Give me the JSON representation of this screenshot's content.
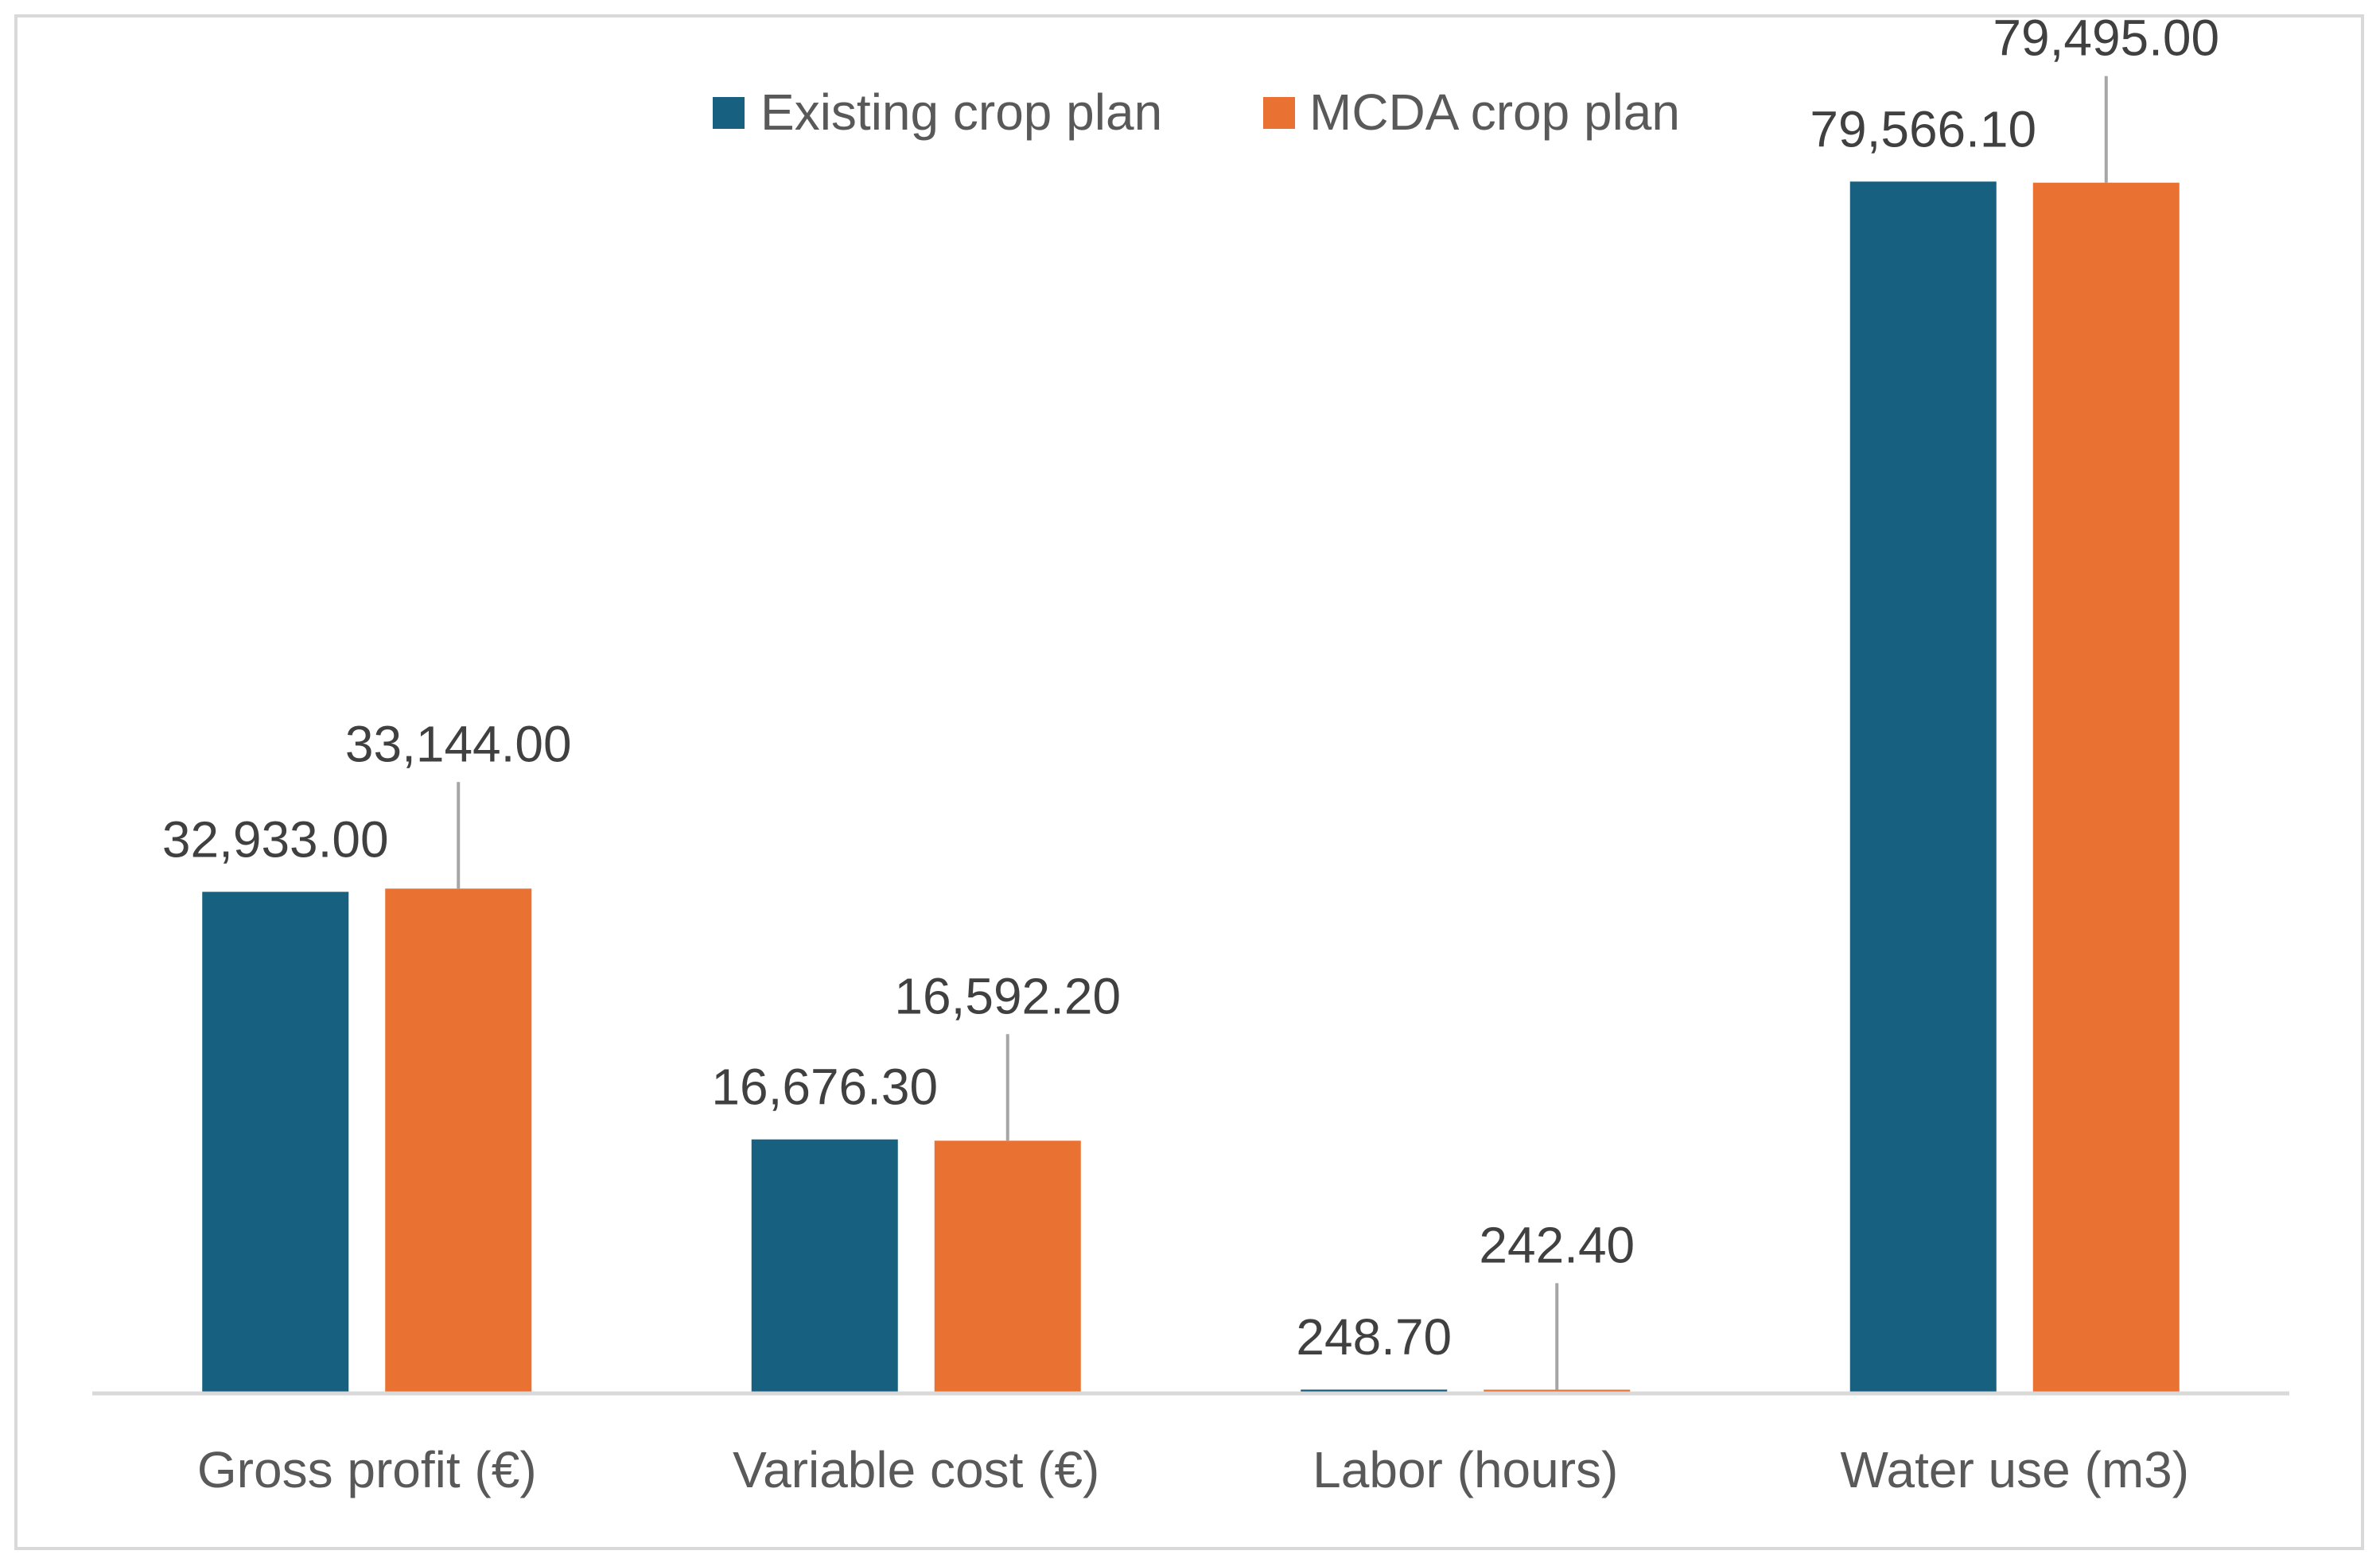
{
  "chart_data": {
    "type": "bar",
    "title": "",
    "xlabel": "",
    "ylabel": "",
    "categories": [
      "Gross profit (€)",
      "Variable cost (€)",
      "Labor (hours)",
      "Water use (m3)"
    ],
    "series": [
      {
        "name": "Existing crop plan",
        "color": "#17607f",
        "values": [
          32933.0,
          16676.3,
          248.7,
          79566.1
        ],
        "labels": [
          "32,933.00",
          "16,676.30",
          "248.70",
          "79,566.10"
        ]
      },
      {
        "name": "MCDA crop plan",
        "color": "#e97132",
        "values": [
          33144.0,
          16592.2,
          242.4,
          79495.0
        ],
        "labels": [
          "33,144.00",
          "16,592.20",
          "242.40",
          "79,495.00"
        ]
      }
    ],
    "ylim": [
      0,
      80000
    ],
    "grid": false,
    "legend_position": "top-center",
    "axis_color": "#d9d9d9",
    "leader_color": "#a6a6a6"
  }
}
